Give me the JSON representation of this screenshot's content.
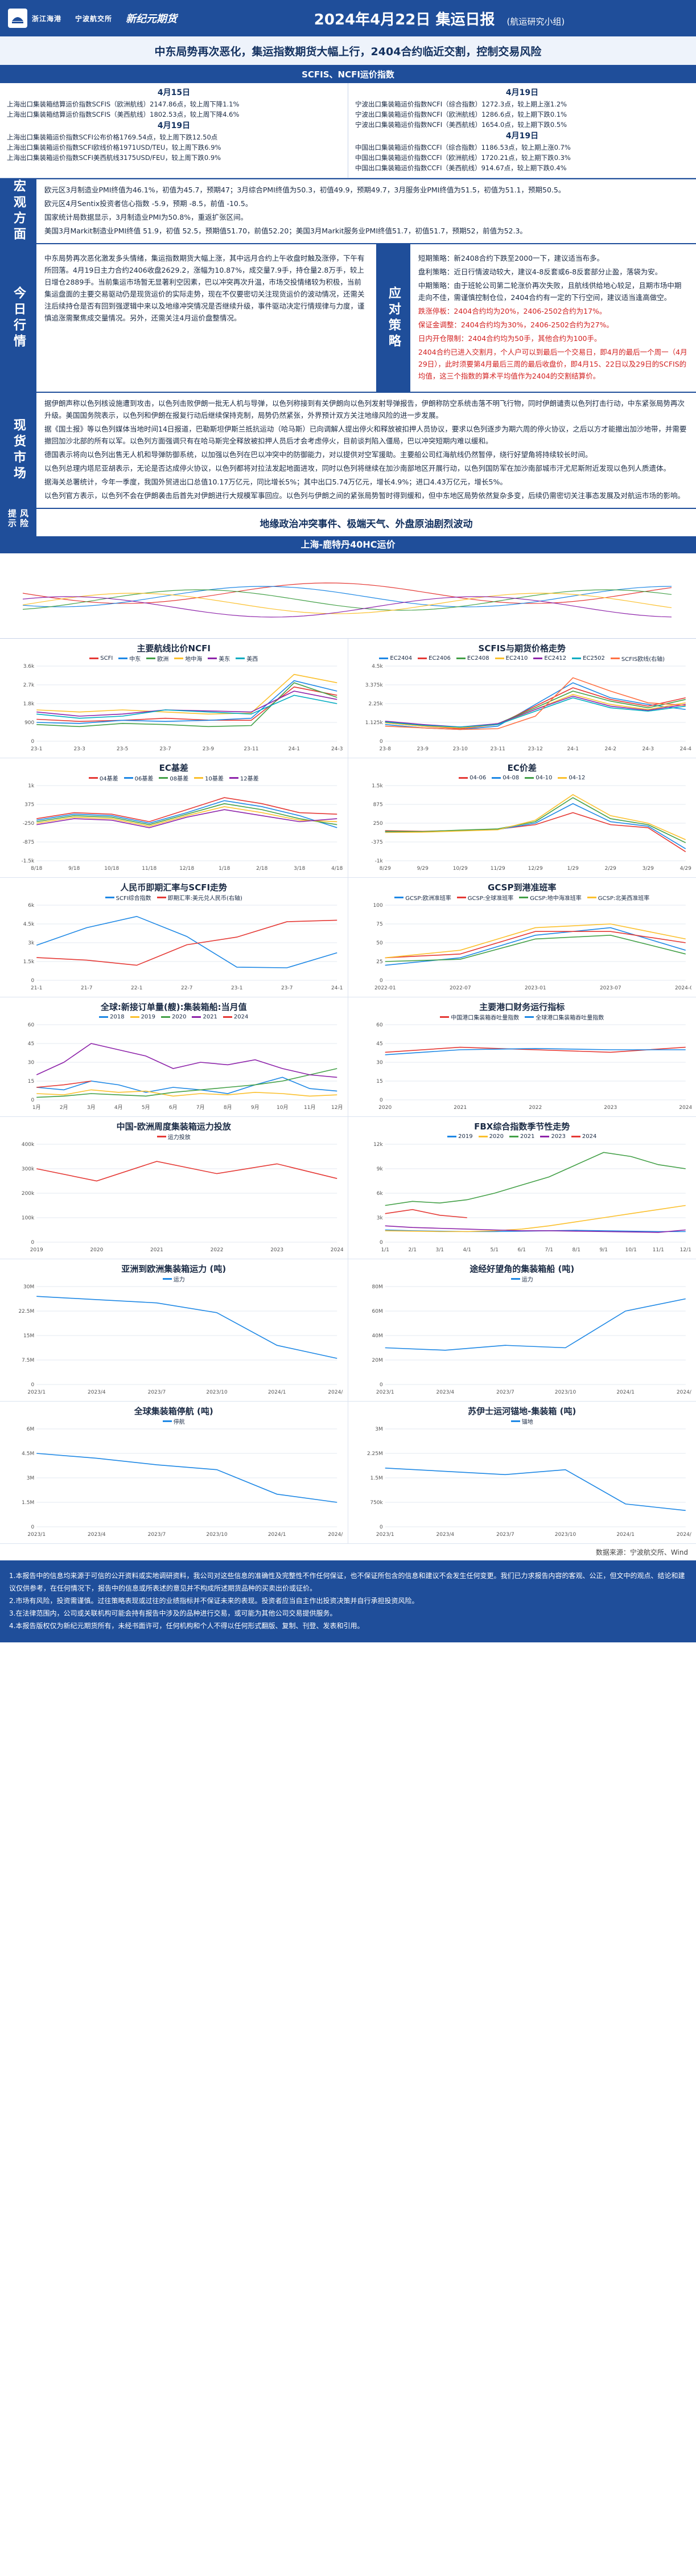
{
  "header": {
    "company": "浙江海港",
    "logo_sub": "宁波航交所",
    "brand": "新纪元期货",
    "title": "2024年4月22日 集运日报",
    "subtitle": "(航运研究小组)"
  },
  "headline": "中东局势再次恶化，集运指数期货大幅上行，2404合约临近交割，控制交易风险",
  "index_section": {
    "title": "SCFIS、NCFI运价指数",
    "left": {
      "date1": "4月15日",
      "lines1": [
        "上海出口集装箱结算运价指数SCFIS（欧洲航线）2147.86点，较上周下降1.1%",
        "上海出口集装箱结算运价指数SCFIS（美西航线）1802.53点，较上周下降4.6%"
      ],
      "date2": "4月19日",
      "lines2": [
        "上海出口集装箱运价指数SCFI公布价格1769.54点，较上周下跌12.50点",
        "上海出口集装箱运价指数SCFI欧线价格1971USD/TEU，较上周下跌6.9%",
        "上海出口集装箱运价指数SCFI美西航线3175USD/FEU，较上周下跌0.9%"
      ]
    },
    "right": {
      "date1": "4月19日",
      "lines1": [
        "宁波出口集装箱运价指数NCFI（综合指数）1272.3点，较上期上涨1.2%",
        "宁波出口集装箱运价指数NCFI（欧洲航线）1286.6点，较上期下跌0.1%",
        "宁波出口集装箱运价指数NCFI（美西航线）1654.0点，较上期下跌0.5%"
      ],
      "date2": "4月19日",
      "lines2": [
        "中国出口集装箱运价指数CCFI（综合指数）1186.53点，较上期上涨0.7%",
        "中国出口集装箱运价指数CCFI（欧洲航线）1720.21点，较上期下跌0.3%",
        "中国出口集装箱运价指数CCFI（美西航线）914.67点，较上期下跌0.4%"
      ]
    }
  },
  "macro": {
    "label": "宏观方面",
    "paras": [
      "欧元区3月制造业PMI终值为46.1%，初值为45.7，预期47；3月综合PMI终值为50.3，初值49.9，预期49.7，3月服务业PMI终值为51.5，初值为51.1，预期50.5。",
      "欧元区4月Sentix投资者信心指数 -5.9，预期 -8.5，前值 -10.5。",
      "国家统计局数据显示，3月制造业PMI为50.8%，重返扩张区间。",
      "美国3月Markit制造业PMI终值 51.9，初值 52.5，预期值51.70，前值52.20；美国3月Markit服务业PMI终值51.7，初值51.7，预期52，前值为52.3。"
    ]
  },
  "today": {
    "label": "今日行情",
    "left": "中东局势再次恶化激发多头情绪，集运指数期货大幅上涨，其中远月合约上午收盘时触及涨停，下午有所回落。4月19日主力合约2406收盘2629.2，涨幅为10.87%，成交量7.9手，持仓量2.8万手，较上日增仓2889手。当前集运市场暂无显著利空因素，巴以冲突再次升温，市场交投情绪较为积极，当前集运盘面的主要交易驱动仍是现货运价的实际走势，现在不仅要密切关注现货运价的波动情况，还需关注后续持仓是否有回到强逻辑中来以及地缘冲突情况是否继续升级，事件驱动决定行情规律与力度，谨慎追涨需聚焦成交量情况。另外，还需关注4月运价盘整情况。",
    "strategy_label": "应对策略",
    "strategy": [
      {
        "text": "短期策略：新2408合约下跌至2000一下，建议适当布多。",
        "red": false
      },
      {
        "text": "盘利策略：近日行情波动较大，建议4-8反套或6-8反套部分止盈，落袋为安。",
        "red": false
      },
      {
        "text": "中期策略：由于班轮公司第二轮涨价再次失败，且航线供给地心较足，且期市场中期走向不佳，需谨慎控制仓位，2404合约有一定的下行空间，建议适当逢高做空。",
        "red": false
      },
      {
        "text": "跌涨停板：2404合约均为20%，2406-2502合约为17%。",
        "red": true
      },
      {
        "text": "保证金调整：2404合约均为30%，2406-2502合约为27%。",
        "red": true
      },
      {
        "text": "日内开仓限制：2404合约均为50手，其他合约为100手。",
        "red": true
      },
      {
        "text": "2404合约已进入交割月，个人户可以到最后一个交易日，即4月的最后一个周一（4月29日），此时须要第4月最后三周的最后收盘价，即4月15、22日以及29日的SCFIS的均值，这三个指数的算术平均值作为2404的交割结算价。",
        "red": true
      }
    ]
  },
  "market": {
    "label": "现货市场",
    "paras": [
      "据伊朗声称以色列核设施遭到攻击，以色列击败伊朗一批无人机与导弹，以色列称接到有关伊朗向以色列发射导弹报告，伊朗称防空系统击落不明飞行物，同时伊朗谴责以色列打击行动，中东紧张局势再次升级。美国国务院表示，以色列和伊朗在报复行动后继续保持克制，局势仍然紧张，外界预计双方关注地缘风险的进一步发展。",
      "据《国土报》等以色列媒体当地时间14日报道，巴勒斯坦伊斯兰抵抗运动（哈马斯）已向调解人提出停火和释放被扣押人员协议，要求以色列逐步为期六周的停火协议，之后以方才能撤出加沙地带，并需要撤回加沙北部的所有以军。以色列方面强调只有在哈马斯完全释放被扣押人员后才会考虑停火，目前谈判陷入僵局，巴以冲突短期内难以缓和。",
      "德国表示将向以色列出售无人机和导弹防御系统，以加强以色列在巴以冲突中的防御能力，对以提供对空军援助。主要船公司红海航线仍然暂停，绕行好望角将持续较长时间。",
      "以色列总理内塔尼亚胡表示，无论是否达成停火协议，以色列都将对拉法发起地面进攻，同时以色列将继续在加沙南部地区开展行动，以色列国防军在加沙南部城市汗尤尼斯附近发现以色列人质遗体。",
      "据海关总署统计，今年一季度，我国外贸进出口总值10.17万亿元，同比增长5%；其中出口5.74万亿元，增长4.9%；进口4.43万亿元，增长5%。",
      "以色列官方表示，以色列不会在伊朗袭击后首先对伊朗进行大规模军事回应。以色列与伊朗之间的紧张局势暂时得到缓和，但中东地区局势依然复杂多变，后续仍需密切关注事态发展及对航运市场的影响。"
    ]
  },
  "risk": {
    "label": "风险提示",
    "text": "地缘政治冲突事件、极端天气、外盘原油剧烈波动"
  },
  "wide_chart": {
    "title": "上海-鹿特丹40HC运价"
  },
  "chart_data": [
    {
      "type": "line",
      "title": "主要航线比价NCFI",
      "x": [
        "23-1",
        "23-3",
        "23-5",
        "23-7",
        "23-9",
        "23-11",
        "24-1",
        "24-3"
      ],
      "ylim": [
        0,
        3600
      ],
      "series": [
        {
          "name": "SCFI",
          "color": "#e53935",
          "values": [
            1050,
            950,
            1000,
            1100,
            1010,
            1000,
            2600,
            2200
          ]
        },
        {
          "name": "中东",
          "color": "#1e88e5",
          "values": [
            900,
            850,
            1000,
            950,
            1000,
            1100,
            2900,
            2400
          ]
        },
        {
          "name": "欧洲",
          "color": "#43a047",
          "values": [
            800,
            700,
            850,
            800,
            700,
            750,
            2800,
            2100
          ]
        },
        {
          "name": "地中海",
          "color": "#fbc02d",
          "values": [
            1500,
            1400,
            1500,
            1400,
            1300,
            1350,
            3200,
            2800
          ]
        },
        {
          "name": "美东",
          "color": "#8e24aa",
          "values": [
            1400,
            1200,
            1300,
            1500,
            1450,
            1400,
            2400,
            2000
          ]
        },
        {
          "name": "美西",
          "color": "#00acc1",
          "values": [
            1300,
            1100,
            1200,
            1500,
            1400,
            1300,
            2200,
            1800
          ]
        }
      ]
    },
    {
      "type": "line",
      "title": "SCFIS与期货价格走势",
      "x": [
        "23-8",
        "23-9",
        "23-10",
        "23-11",
        "23-12",
        "24-1",
        "24-2",
        "24-3",
        "24-4"
      ],
      "ylim": [
        0,
        4500
      ],
      "series": [
        {
          "name": "EC2404",
          "color": "#1e88e5",
          "values": [
            1000,
            800,
            700,
            900,
            2200,
            3500,
            2600,
            2200,
            1900
          ]
        },
        {
          "name": "EC2406",
          "color": "#e53935",
          "values": [
            1100,
            900,
            750,
            1000,
            2100,
            3200,
            2500,
            2100,
            2600
          ]
        },
        {
          "name": "EC2408",
          "color": "#43a047",
          "values": [
            1150,
            950,
            800,
            1050,
            2000,
            3000,
            2400,
            2000,
            2500
          ]
        },
        {
          "name": "EC2410",
          "color": "#fbc02d",
          "values": [
            1100,
            900,
            800,
            1000,
            1900,
            2800,
            2200,
            1900,
            2300
          ]
        },
        {
          "name": "EC2412",
          "color": "#8e24aa",
          "values": [
            1200,
            1000,
            850,
            1050,
            1900,
            2700,
            2100,
            1850,
            2200
          ]
        },
        {
          "name": "EC2502",
          "color": "#00acc1",
          "values": [
            1150,
            950,
            850,
            1000,
            1800,
            2600,
            2000,
            1800,
            2100
          ]
        },
        {
          "name": "SCFIS欧线(右轴)",
          "color": "#ff7043",
          "values": [
            900,
            800,
            700,
            750,
            1500,
            3800,
            3000,
            2300,
            2147
          ]
        }
      ]
    },
    {
      "type": "line",
      "title": "EC基差",
      "x": [
        "8/18",
        "9/18",
        "10/18",
        "11/18",
        "12/18",
        "1/18",
        "2/18",
        "3/18",
        "4/18"
      ],
      "ylim": [
        -1500,
        1000
      ],
      "series": [
        {
          "name": "04基差",
          "color": "#e53935",
          "values": [
            -100,
            100,
            50,
            -200,
            200,
            600,
            400,
            100,
            50
          ]
        },
        {
          "name": "06基差",
          "color": "#1e88e5",
          "values": [
            -150,
            50,
            0,
            -250,
            100,
            500,
            300,
            0,
            -400
          ]
        },
        {
          "name": "08基差",
          "color": "#43a047",
          "values": [
            -200,
            0,
            -50,
            -300,
            50,
            400,
            200,
            -100,
            -300
          ]
        },
        {
          "name": "10基差",
          "color": "#fbc02d",
          "values": [
            -250,
            -50,
            -100,
            -350,
            0,
            300,
            100,
            -150,
            -200
          ]
        },
        {
          "name": "12基差",
          "color": "#8e24aa",
          "values": [
            -300,
            -100,
            -150,
            -400,
            -50,
            200,
            0,
            -200,
            -100
          ]
        }
      ]
    },
    {
      "type": "line",
      "title": "EC价差",
      "x": [
        "8/29",
        "9/29",
        "10/29",
        "11/29",
        "12/29",
        "1/29",
        "2/29",
        "3/29",
        "4/29"
      ],
      "ylim": [
        -1000,
        1500
      ],
      "series": [
        {
          "name": "04-06",
          "color": "#e53935",
          "values": [
            0,
            -20,
            10,
            50,
            200,
            600,
            200,
            100,
            -700
          ]
        },
        {
          "name": "04-08",
          "color": "#1e88e5",
          "values": [
            -40,
            -40,
            0,
            40,
            250,
            900,
            300,
            150,
            -600
          ]
        },
        {
          "name": "04-10",
          "color": "#43a047",
          "values": [
            -20,
            -30,
            20,
            60,
            300,
            1100,
            400,
            200,
            -400
          ]
        },
        {
          "name": "04-12",
          "color": "#fbc02d",
          "values": [
            -60,
            -50,
            -10,
            30,
            350,
            1200,
            500,
            250,
            -300
          ]
        }
      ]
    },
    {
      "type": "line",
      "title": "人民币即期汇率与SCFI走势",
      "x": [
        "21-1",
        "21-7",
        "22-1",
        "22-7",
        "23-1",
        "23-7",
        "24-1"
      ],
      "ylim": [
        0,
        6000
      ],
      "series": [
        {
          "name": "SCFI综合指数",
          "color": "#1e88e5",
          "values": [
            2800,
            4200,
            5100,
            3500,
            1050,
            1000,
            2200
          ]
        },
        {
          "name": "即期汇率:美元兑人民币(右轴)",
          "color": "#e53935",
          "values": [
            6.5,
            6.45,
            6.35,
            6.75,
            6.9,
            7.2,
            7.23
          ]
        }
      ]
    },
    {
      "type": "line",
      "title": "GCSP到港准班率",
      "x": [
        "2022-01",
        "2022-07",
        "2023-01",
        "2023-07",
        "2024-01"
      ],
      "ylim": [
        0,
        100
      ],
      "series": [
        {
          "name": "GCSP:欧洲准班率",
          "color": "#1e88e5",
          "values": [
            20,
            30,
            60,
            70,
            40
          ]
        },
        {
          "name": "GCSP:全球准班率",
          "color": "#e53935",
          "values": [
            30,
            35,
            65,
            65,
            50
          ]
        },
        {
          "name": "GCSP:地中海准班率",
          "color": "#43a047",
          "values": [
            25,
            28,
            55,
            60,
            35
          ]
        },
        {
          "name": "GCSP:北美西准班率",
          "color": "#fbc02d",
          "values": [
            30,
            40,
            70,
            75,
            55
          ]
        }
      ]
    },
    {
      "type": "line",
      "title": "全球:新接订单量(艘):集装箱船:当月值",
      "x": [
        "1月",
        "2月",
        "3月",
        "4月",
        "5月",
        "6月",
        "7月",
        "8月",
        "9月",
        "10月",
        "11月",
        "12月"
      ],
      "ylim": [
        0,
        60
      ],
      "series": [
        {
          "name": "2018",
          "color": "#1e88e5",
          "values": [
            10,
            8,
            15,
            12,
            6,
            10,
            8,
            5,
            12,
            18,
            9,
            7
          ]
        },
        {
          "name": "2019",
          "color": "#fbc02d",
          "values": [
            5,
            4,
            8,
            6,
            7,
            3,
            5,
            4,
            6,
            5,
            3,
            4
          ]
        },
        {
          "name": "2020",
          "color": "#43a047",
          "values": [
            2,
            3,
            5,
            4,
            3,
            6,
            8,
            10,
            12,
            15,
            20,
            25
          ]
        },
        {
          "name": "2021",
          "color": "#8e24aa",
          "values": [
            20,
            30,
            45,
            40,
            35,
            25,
            30,
            28,
            32,
            25,
            20,
            18
          ]
        },
        {
          "name": "2024",
          "color": "#e53935",
          "values": [
            10,
            12,
            15,
            null,
            null,
            null,
            null,
            null,
            null,
            null,
            null,
            null
          ]
        }
      ]
    },
    {
      "type": "line",
      "title": "主要港口财务运行指标",
      "x": [
        "2020",
        "2021",
        "2022",
        "2023",
        "2024"
      ],
      "ylim": [
        0,
        60
      ],
      "series": [
        {
          "name": "中国港口集装箱吞吐量指数",
          "color": "#e53935",
          "values": [
            38,
            42,
            40,
            38,
            42
          ]
        },
        {
          "name": "全球港口集装箱吞吐量指数",
          "color": "#1e88e5",
          "values": [
            36,
            40,
            41,
            40,
            40
          ]
        }
      ]
    },
    {
      "type": "line",
      "title": "中国-欧洲周度集装箱运力投放",
      "x": [
        "2019",
        "2020",
        "2021",
        "2022",
        "2023",
        "2024"
      ],
      "ylim": [
        0,
        400000
      ],
      "series": [
        {
          "name": "运力投放",
          "color": "#e53935",
          "values": [
            300000,
            250000,
            330000,
            280000,
            320000,
            260000
          ]
        }
      ]
    },
    {
      "type": "line",
      "title": "FBX综合指数季节性走势",
      "x": [
        "1/1",
        "2/1",
        "3/1",
        "4/1",
        "5/1",
        "6/1",
        "7/1",
        "8/1",
        "9/1",
        "10/1",
        "11/1",
        "12/1"
      ],
      "ylim": [
        0,
        12000
      ],
      "series": [
        {
          "name": "2019",
          "color": "#1e88e5",
          "values": [
            1500,
            1400,
            1350,
            1300,
            1300,
            1350,
            1400,
            1450,
            1400,
            1350,
            1300,
            1300
          ]
        },
        {
          "name": "2020",
          "color": "#fbc02d",
          "values": [
            1400,
            1350,
            1300,
            1300,
            1400,
            1600,
            2000,
            2500,
            3000,
            3500,
            4000,
            4500
          ]
        },
        {
          "name": "2021",
          "color": "#43a047",
          "values": [
            4500,
            5000,
            4800,
            5200,
            6000,
            7000,
            8000,
            9500,
            11000,
            10500,
            9500,
            9000
          ]
        },
        {
          "name": "2023",
          "color": "#8e24aa",
          "values": [
            2000,
            1800,
            1700,
            1600,
            1500,
            1400,
            1400,
            1350,
            1300,
            1250,
            1200,
            1500
          ]
        },
        {
          "name": "2024",
          "color": "#e53935",
          "values": [
            3500,
            4000,
            3300,
            3000,
            null,
            null,
            null,
            null,
            null,
            null,
            null,
            null
          ]
        }
      ]
    },
    {
      "type": "line",
      "title": "亚洲到欧洲集装箱运力 (吨)",
      "x": [
        "2023/1",
        "2023/4",
        "2023/7",
        "2023/10",
        "2024/1",
        "2024/4"
      ],
      "ylim": [
        0,
        30000000
      ],
      "series": [
        {
          "name": "运力",
          "color": "#1e88e5",
          "values": [
            27000000,
            26000000,
            25000000,
            22000000,
            12000000,
            8000000
          ]
        }
      ]
    },
    {
      "type": "line",
      "title": "途经好望角的集装箱船 (吨)",
      "x": [
        "2023/1",
        "2023/4",
        "2023/7",
        "2023/10",
        "2024/1",
        "2024/4"
      ],
      "ylim": [
        0,
        80000000
      ],
      "series": [
        {
          "name": "运力",
          "color": "#1e88e5",
          "values": [
            30000000,
            28000000,
            32000000,
            30000000,
            60000000,
            70000000
          ]
        }
      ]
    },
    {
      "type": "line",
      "title": "全球集装箱停航 (吨)",
      "x": [
        "2023/1",
        "2023/4",
        "2023/7",
        "2023/10",
        "2024/1",
        "2024/4"
      ],
      "ylim": [
        0,
        6000000
      ],
      "series": [
        {
          "name": "停航",
          "color": "#1e88e5",
          "values": [
            4500000,
            4200000,
            3800000,
            3500000,
            2000000,
            1500000
          ]
        }
      ]
    },
    {
      "type": "line",
      "title": "苏伊士运河锚地-集装箱 (吨)",
      "x": [
        "2023/1",
        "2023/4",
        "2023/7",
        "2023/10",
        "2024/1",
        "2024/4"
      ],
      "ylim": [
        0,
        3000000
      ],
      "series": [
        {
          "name": "锚地",
          "color": "#1e88e5",
          "values": [
            1800000,
            1700000,
            1600000,
            1750000,
            700000,
            500000
          ]
        }
      ]
    }
  ],
  "source": "数据来源：宁波航交所、Wind",
  "disclaimer": [
    "1.本报告中的信息均来源于可信的公开资料或实地调研资料，我公司对这些信息的准确性及完整性不作任何保证，也不保证所包含的信息和建议不会发生任何变更。我们已力求报告内容的客观、公正，但文中的观点、结论和建议仅供参考，在任何情况下，报告中的信息或所表述的意见并不构成所述期货品种的买卖出价或征价。",
    "2.市场有风险，投资需谨慎。过往策略表现或过往的业绩指标并不保证未来的表现。投资者应当自主作出投资决策并自行承担投资风险。",
    "3.在法律范围内，公司或关联机构可能会持有报告中涉及的品种进行交易，或可能为其他公司交易提供服务。",
    "4.本报告版权仅为新纪元期货所有，未经书面许可，任何机构和个人不得以任何形式翻版、复制、刊登、发表和引用。"
  ]
}
